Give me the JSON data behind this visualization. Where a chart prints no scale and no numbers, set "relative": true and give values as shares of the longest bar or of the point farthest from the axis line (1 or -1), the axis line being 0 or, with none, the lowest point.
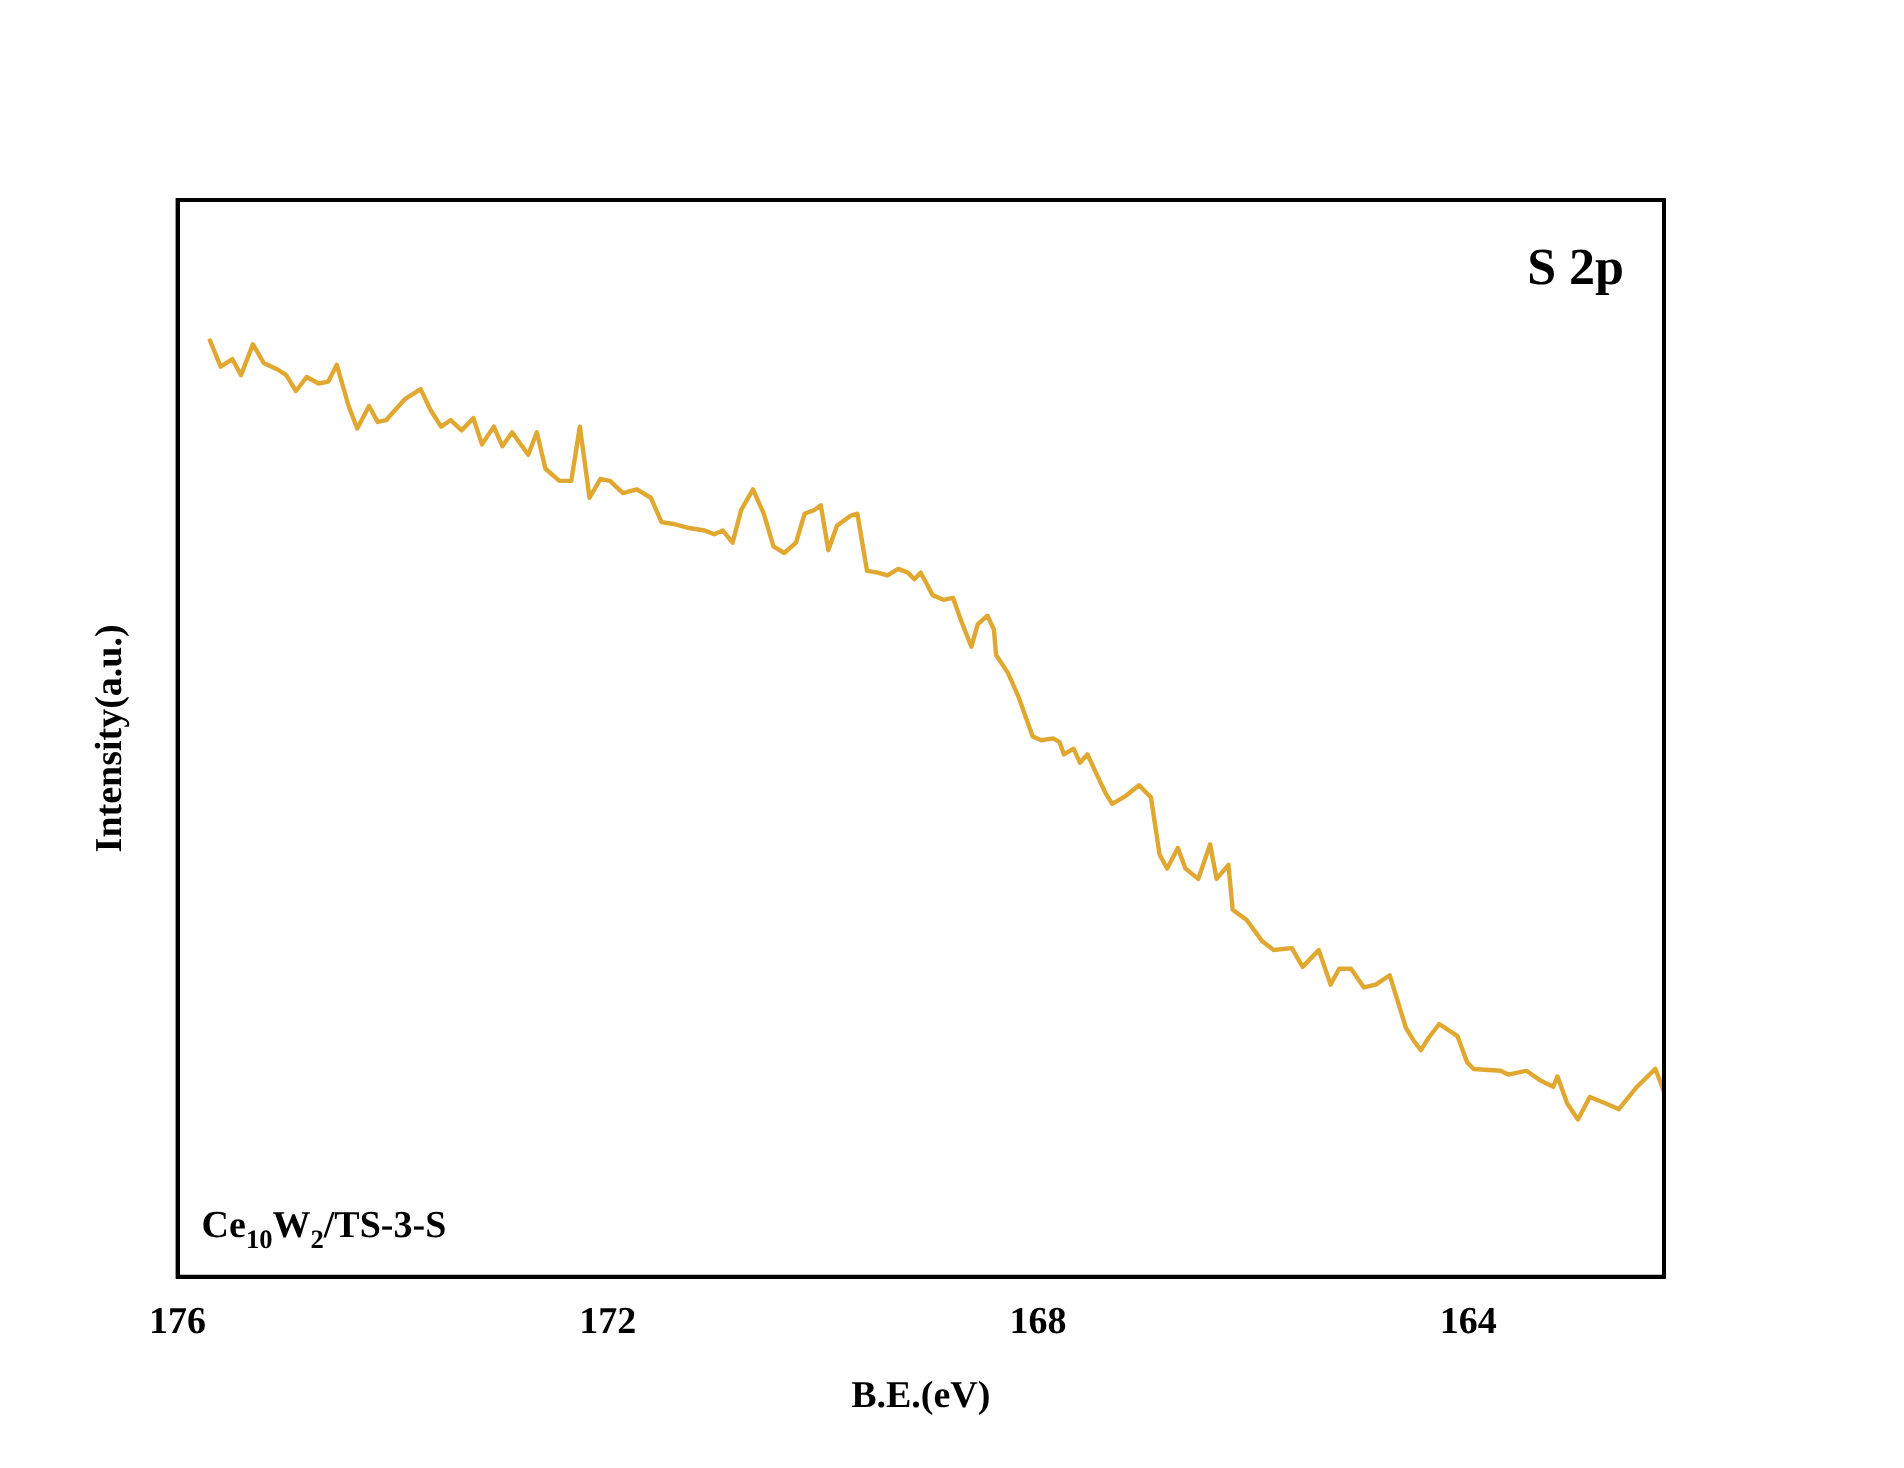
{
  "chart_data": {
    "type": "line",
    "xlabel": "B.E.(eV)",
    "ylabel": "Intensity(a.u.)",
    "relative": true,
    "tick_labels": "x",
    "grid": false,
    "legend": false,
    "marker": "none",
    "line_style": "solid",
    "annotations": [
      "S 2p",
      "Ce$_{10}$W$_{2}$/TS-3-S"
    ],
    "xlim": [
      176,
      162.18
    ],
    "xticks": [
      176,
      172,
      168,
      164
    ],
    "series": [
      {
        "color": "#e0a830",
        "x": [
          175.7,
          175.6,
          175.49,
          175.41,
          175.3,
          175.2,
          175.07,
          174.99,
          174.9,
          174.8,
          174.69,
          174.6,
          174.52,
          174.41,
          174.33,
          174.22,
          174.14,
          174.06,
          173.89,
          173.74,
          173.65,
          173.55,
          173.46,
          173.36,
          173.25,
          173.17,
          173.06,
          172.98,
          172.89,
          172.74,
          172.66,
          172.58,
          172.45,
          172.34,
          172.26,
          172.17,
          172.07,
          171.98,
          171.86,
          171.73,
          171.6,
          171.5,
          171.39,
          171.26,
          171.1,
          171.01,
          170.93,
          170.84,
          170.76,
          170.65,
          170.55,
          170.46,
          170.36,
          170.25,
          170.17,
          170.08,
          170.02,
          169.95,
          169.87,
          169.74,
          169.68,
          169.59,
          169.49,
          169.4,
          169.3,
          169.21,
          169.15,
          169.09,
          168.98,
          168.88,
          168.79,
          168.71,
          168.62,
          168.56,
          168.47,
          168.41,
          168.39,
          168.28,
          168.18,
          168.05,
          167.97,
          167.86,
          167.8,
          167.76,
          167.67,
          167.61,
          167.54,
          167.46,
          167.37,
          167.31,
          167.18,
          167.06,
          166.95,
          166.87,
          166.8,
          166.7,
          166.63,
          166.51,
          166.4,
          166.34,
          166.23,
          166.19,
          166.06,
          165.92,
          165.81,
          165.64,
          165.54,
          165.39,
          165.28,
          165.2,
          165.09,
          164.97,
          164.86,
          164.73,
          164.58,
          164.5,
          164.44,
          164.37,
          164.27,
          164.1,
          164.01,
          163.95,
          163.7,
          163.63,
          163.46,
          163.32,
          163.21,
          163.17,
          163.08,
          162.98,
          162.87,
          162.72,
          162.6,
          162.43,
          162.26,
          162.18
        ],
        "values": [
          1.0,
          0.972,
          0.98,
          0.963,
          0.996,
          0.976,
          0.969,
          0.963,
          0.946,
          0.961,
          0.954,
          0.956,
          0.974,
          0.93,
          0.906,
          0.93,
          0.913,
          0.915,
          0.937,
          0.948,
          0.926,
          0.908,
          0.915,
          0.904,
          0.917,
          0.889,
          0.908,
          0.887,
          0.902,
          0.878,
          0.902,
          0.863,
          0.85,
          0.85,
          0.908,
          0.832,
          0.852,
          0.85,
          0.837,
          0.841,
          0.832,
          0.806,
          0.804,
          0.8,
          0.797,
          0.793,
          0.797,
          0.784,
          0.819,
          0.841,
          0.815,
          0.78,
          0.773,
          0.784,
          0.815,
          0.819,
          0.824,
          0.776,
          0.802,
          0.813,
          0.815,
          0.754,
          0.752,
          0.749,
          0.756,
          0.752,
          0.745,
          0.752,
          0.728,
          0.723,
          0.725,
          0.699,
          0.673,
          0.697,
          0.706,
          0.691,
          0.664,
          0.645,
          0.619,
          0.577,
          0.573,
          0.575,
          0.571,
          0.558,
          0.564,
          0.549,
          0.558,
          0.538,
          0.516,
          0.505,
          0.514,
          0.525,
          0.512,
          0.451,
          0.436,
          0.458,
          0.436,
          0.425,
          0.462,
          0.425,
          0.44,
          0.392,
          0.381,
          0.359,
          0.349,
          0.351,
          0.331,
          0.349,
          0.312,
          0.329,
          0.329,
          0.309,
          0.312,
          0.322,
          0.266,
          0.251,
          0.242,
          0.255,
          0.27,
          0.257,
          0.229,
          0.222,
          0.22,
          0.216,
          0.22,
          0.209,
          0.203,
          0.214,
          0.185,
          0.168,
          0.192,
          0.185,
          0.179,
          0.203,
          0.222,
          0.198
        ]
      }
    ]
  }
}
